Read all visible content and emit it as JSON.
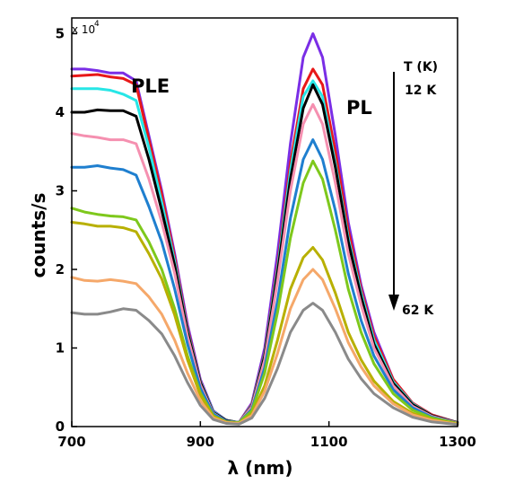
{
  "chart_data": {
    "type": "line",
    "xlabel": "λ (nm)",
    "ylabel": "counts/s",
    "xlim": [
      700,
      1300
    ],
    "ylim": [
      0,
      52000
    ],
    "x_ticks": [
      "700",
      "900",
      "1100",
      "1300"
    ],
    "y_ticks": [
      "0",
      "1",
      "2",
      "3",
      "4",
      "5"
    ],
    "y_multiplier": {
      "base": "x 10",
      "exponent": "4"
    },
    "grid": false,
    "annotations": {
      "ple": "PLE",
      "pl": "PL",
      "temp_label": "T (K)",
      "temp_start": "12 K",
      "temp_end": "62 K"
    },
    "x": [
      700,
      720,
      740,
      760,
      780,
      800,
      820,
      840,
      860,
      880,
      900,
      920,
      940,
      960,
      980,
      1000,
      1020,
      1040,
      1060,
      1075,
      1090,
      1110,
      1130,
      1150,
      1170,
      1200,
      1230,
      1260,
      1300
    ],
    "series": [
      {
        "color": "#7a2ee6",
        "values": [
          45500,
          45500,
          45300,
          45000,
          45000,
          44000,
          37000,
          30000,
          22000,
          13000,
          6000,
          2000,
          800,
          500,
          3000,
          10000,
          22000,
          36000,
          47000,
          50000,
          47000,
          37000,
          26000,
          18000,
          12000,
          6000,
          3000,
          1500,
          500
        ]
      },
      {
        "color": "#e81818",
        "values": [
          44600,
          44700,
          44800,
          44500,
          44300,
          43500,
          36500,
          29500,
          21500,
          12500,
          5800,
          1900,
          800,
          500,
          2800,
          9400,
          20500,
          33500,
          43000,
          45500,
          43500,
          35000,
          25000,
          17500,
          11500,
          6000,
          3000,
          1500,
          500
        ]
      },
      {
        "color": "#27e6e6",
        "values": [
          43000,
          43000,
          43000,
          42800,
          42300,
          41500,
          35500,
          28500,
          21000,
          12200,
          5700,
          1900,
          800,
          500,
          2700,
          9200,
          20000,
          32500,
          42000,
          44000,
          42000,
          33500,
          24000,
          17000,
          11000,
          5700,
          2900,
          1400,
          500
        ]
      },
      {
        "color": "#000000",
        "values": [
          40000,
          40000,
          40300,
          40200,
          40200,
          39500,
          34000,
          27500,
          20500,
          12000,
          5600,
          1800,
          800,
          500,
          2600,
          9000,
          19500,
          31500,
          40500,
          43500,
          41000,
          33000,
          23500,
          16500,
          10500,
          5500,
          2800,
          1400,
          500
        ]
      },
      {
        "color": "#f590b0",
        "values": [
          37300,
          37000,
          36800,
          36500,
          36500,
          36000,
          31500,
          26000,
          19500,
          11500,
          5300,
          1700,
          700,
          500,
          2500,
          8500,
          18500,
          30000,
          38500,
          41000,
          38500,
          31000,
          22000,
          15500,
          10000,
          5200,
          2600,
          1300,
          450
        ]
      },
      {
        "color": "#1f7fcf",
        "values": [
          33000,
          33000,
          33200,
          32900,
          32700,
          32000,
          28000,
          23500,
          17500,
          10500,
          4900,
          1600,
          700,
          500,
          2200,
          7500,
          16000,
          26500,
          34000,
          36500,
          34000,
          27500,
          19500,
          13500,
          9000,
          4700,
          2400,
          1200,
          400
        ]
      },
      {
        "color": "#7ec81c",
        "values": [
          27800,
          27300,
          27000,
          26800,
          26700,
          26300,
          23500,
          20000,
          15000,
          9000,
          4300,
          1400,
          600,
          500,
          2000,
          6800,
          14500,
          24000,
          31000,
          33800,
          31500,
          25000,
          17500,
          12000,
          8000,
          4200,
          2100,
          1100,
          400
        ]
      },
      {
        "color": "#b8b000",
        "values": [
          26000,
          25800,
          25500,
          25500,
          25300,
          24800,
          22000,
          18800,
          14200,
          8500,
          4000,
          1300,
          600,
          400,
          1600,
          5200,
          11000,
          17500,
          21500,
          22800,
          21200,
          17000,
          12000,
          8500,
          5800,
          3200,
          1700,
          900,
          350
        ]
      },
      {
        "color": "#f5a86a",
        "values": [
          19000,
          18600,
          18500,
          18700,
          18500,
          18200,
          16500,
          14300,
          11000,
          6800,
          3300,
          1100,
          500,
          400,
          1400,
          4500,
          9300,
          15000,
          18700,
          20000,
          18700,
          15000,
          10700,
          7600,
          5200,
          2900,
          1500,
          800,
          300
        ]
      },
      {
        "color": "#8a8a8a",
        "values": [
          14500,
          14300,
          14300,
          14600,
          15000,
          14800,
          13500,
          11800,
          9000,
          5600,
          2700,
          900,
          400,
          300,
          1100,
          3600,
          7400,
          12000,
          14800,
          15700,
          14800,
          12000,
          8600,
          6100,
          4200,
          2400,
          1200,
          600,
          250
        ]
      }
    ]
  }
}
